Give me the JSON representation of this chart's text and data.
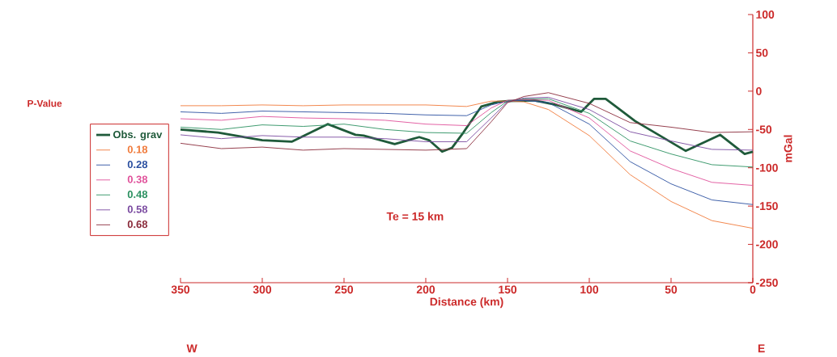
{
  "chart_data": {
    "type": "line",
    "xlabel": "Distance (km)",
    "ylabel": "mGal",
    "legend_title": "P-Value",
    "annotations": [
      "Te = 15 km",
      "W",
      "E"
    ],
    "x": [
      350,
      325,
      300,
      275,
      250,
      225,
      200,
      175,
      160,
      150,
      140,
      125,
      100,
      75,
      50,
      25,
      0
    ],
    "series": [
      {
        "name": "Obs. grav",
        "color": "#1f5a3a",
        "x": [
          350,
          327,
          300,
          282,
          260,
          243,
          238,
          219,
          204,
          198,
          190,
          184,
          177,
          166,
          156,
          150,
          134,
          120,
          105,
          97,
          90,
          72,
          60,
          41,
          20,
          5,
          0
        ],
        "values": [
          -50,
          -54,
          -64,
          -66,
          -43,
          -57,
          -58,
          -69,
          -60,
          -64,
          -79,
          -74,
          -54,
          -20,
          -14,
          -13,
          -12,
          -18,
          -27,
          -10,
          -10,
          -39,
          -54,
          -78,
          -57,
          -82,
          -79
        ]
      },
      {
        "name": "0.18",
        "color": "#f07a3a",
        "values": [
          -19,
          -19,
          -18,
          -19,
          -18,
          -18,
          -18,
          -20,
          -13,
          -13,
          -14,
          -24,
          -58,
          -109,
          -144,
          -169,
          -179
        ]
      },
      {
        "name": "0.28",
        "color": "#2a4fa0",
        "values": [
          -27,
          -29,
          -26,
          -27,
          -28,
          -29,
          -31,
          -32,
          -18,
          -13,
          -12,
          -15,
          -43,
          -92,
          -121,
          -142,
          -148
        ]
      },
      {
        "name": "0.38",
        "color": "#e0509a",
        "values": [
          -36,
          -38,
          -33,
          -35,
          -36,
          -38,
          -43,
          -45,
          -22,
          -12,
          -11,
          -12,
          -35,
          -78,
          -101,
          -119,
          -123
        ]
      },
      {
        "name": "0.48",
        "color": "#2a9060",
        "values": [
          -47,
          -50,
          -44,
          -46,
          -43,
          -50,
          -54,
          -55,
          -28,
          -13,
          -10,
          -10,
          -29,
          -65,
          -82,
          -96,
          -99
        ]
      },
      {
        "name": "0.58",
        "color": "#7a4aa0",
        "values": [
          -57,
          -62,
          -58,
          -60,
          -60,
          -62,
          -66,
          -66,
          -35,
          -14,
          -9,
          -8,
          -24,
          -53,
          -65,
          -76,
          -77
        ]
      },
      {
        "name": "0.68",
        "color": "#8a2a3a",
        "values": [
          -68,
          -75,
          -73,
          -77,
          -75,
          -76,
          -77,
          -75,
          -40,
          -15,
          -7,
          -2,
          -16,
          -41,
          -47,
          -54,
          -53
        ]
      }
    ],
    "xlim": [
      350,
      0
    ],
    "xticks": [
      350,
      300,
      250,
      200,
      150,
      100,
      50,
      0
    ],
    "ylim": [
      -250,
      100
    ],
    "yticks": [
      -250,
      -200,
      -150,
      -100,
      -50,
      0,
      50,
      100
    ],
    "legend": "left",
    "grid": false,
    "marker": "none",
    "line_style": "solid"
  }
}
